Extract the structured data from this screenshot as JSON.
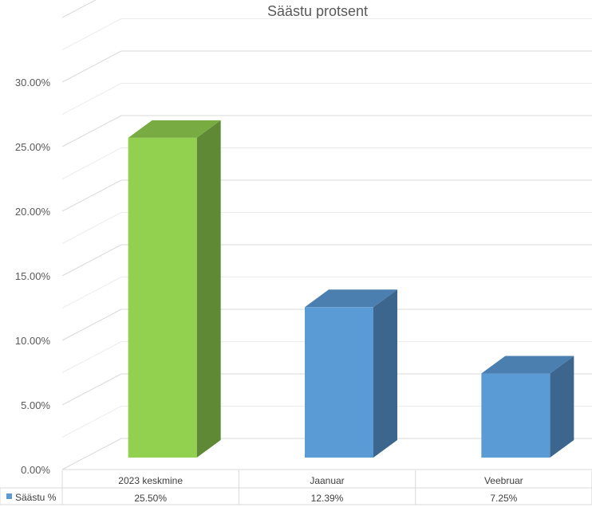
{
  "chart_data": {
    "type": "bar",
    "title": "Säästu protsent",
    "categories": [
      "2023 keskmine",
      "Jaanuar",
      "Veebruar"
    ],
    "series": [
      {
        "name": "Säästu %",
        "values": [
          25.5,
          12.39,
          7.25
        ],
        "value_labels": [
          "25.50%",
          "12.39%",
          "7.25%"
        ],
        "color": "#5B9BD5",
        "highlight_color": "#92D050",
        "highlight_index": 0
      }
    ],
    "yticks": [
      "0.00%",
      "5.00%",
      "10.00%",
      "15.00%",
      "20.00%",
      "25.00%",
      "30.00%"
    ],
    "ylim": [
      0,
      35
    ],
    "grid": true,
    "legend": "data-table",
    "three_d": true
  }
}
